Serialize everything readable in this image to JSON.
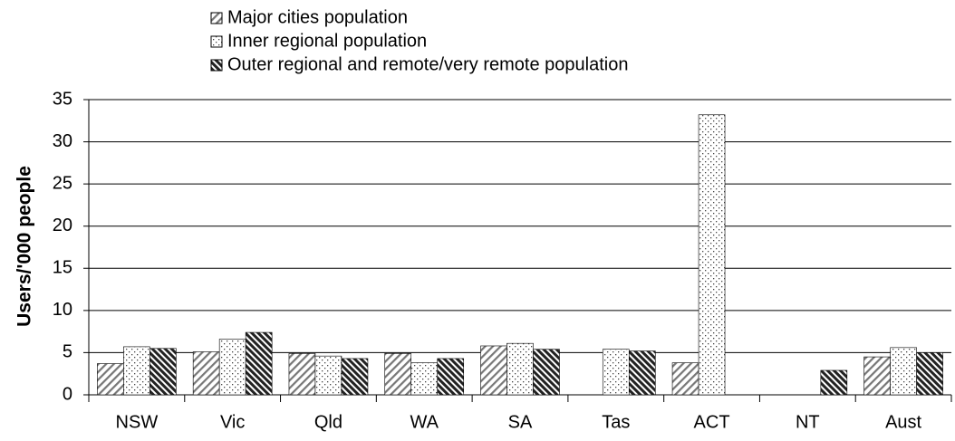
{
  "chart_data": {
    "type": "bar",
    "y_label": "Users/'000 people",
    "categories": [
      "NSW",
      "Vic",
      "Qld",
      "WA",
      "SA",
      "Tas",
      "ACT",
      "NT",
      "Aust"
    ],
    "series": [
      {
        "name": "Major cities population",
        "color": "#000000",
        "pattern": "diagonal",
        "values": [
          3.7,
          5.1,
          4.9,
          4.9,
          5.8,
          null,
          3.8,
          null,
          4.5
        ]
      },
      {
        "name": "Inner regional population",
        "color": "#000000",
        "pattern": "dots",
        "values": [
          5.7,
          6.6,
          4.6,
          3.8,
          6.1,
          5.4,
          33.2,
          null,
          5.6
        ]
      },
      {
        "name": "Outer regional and remote/very remote population",
        "color": "#000000",
        "pattern": "dense-diagonal",
        "values": [
          5.5,
          7.4,
          4.3,
          4.3,
          5.4,
          5.2,
          null,
          2.9,
          5.0
        ]
      }
    ],
    "ylim": [
      0,
      35
    ],
    "yticks": [
      0,
      5,
      10,
      15,
      20,
      25,
      30,
      35
    ],
    "grid": true
  }
}
